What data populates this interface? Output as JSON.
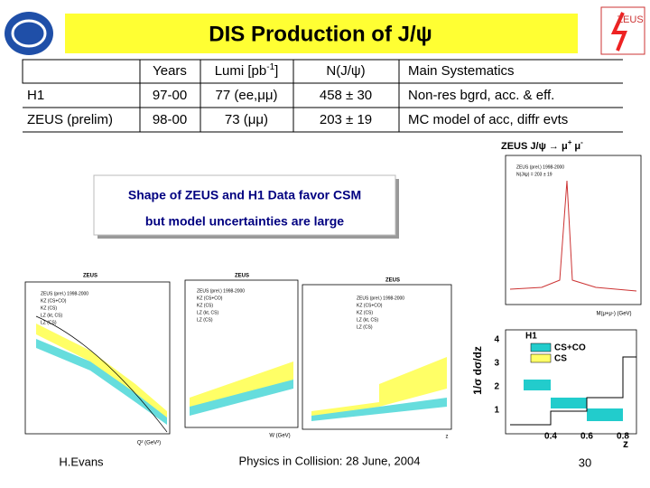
{
  "header": {
    "title": "DIS Production of J/ψ",
    "logo_right": "ZEUS"
  },
  "table": {
    "header": [
      "Years",
      {
        "text": "Lumi [pb",
        "sup": "-1",
        "end": "]"
      },
      "N(J/ψ)",
      "Main Systematics"
    ],
    "rows": [
      [
        "H1",
        "97-00",
        "77 (ee,μμ)",
        "458 ± 30",
        "Non-res bgrd, acc. & eff."
      ],
      [
        "ZEUS (prelim)",
        "98-00",
        "73 (μμ)",
        "203 ± 19",
        "MC model of acc, diffr evts"
      ]
    ]
  },
  "channel": {
    "text": "ZEUS J/ψ → μ",
    "sup1": "+",
    "mid": " μ",
    "sup2": "-"
  },
  "callout": [
    "Shape of ZEUS and H1 Data favor CSM",
    "but model uncertainties are large"
  ],
  "plots": [
    {
      "label": "ZEUS",
      "legend": [
        "ZEUS (prel.) 1998-2000",
        "KZ (CS+CO)",
        "KZ (CS)",
        "LZ (kt, CS)",
        "LZ (CS)"
      ],
      "xlabel": "Q² (GeV²)"
    },
    {
      "label": "ZEUS",
      "legend": [
        "ZEUS (prel.) 1998-2000",
        "KZ (CS+CO)",
        "KZ (CS)",
        "LZ (kt, CS)",
        "LZ (CS)"
      ],
      "xlabel": "W (GeV)"
    },
    {
      "label": "ZEUS",
      "legend": [
        "ZEUS (prel.) 1998-2000",
        "KZ (CS+CO)",
        "KZ (CS)",
        "LZ (kt, CS)",
        "LZ (CS)"
      ],
      "xlabel": "z"
    },
    {
      "legend": [
        "ZEUS (prel.) 1998-2000",
        "N(J/ψ) = 203 ± 19"
      ],
      "xlabel": "M(μ+μ-) (GeV)"
    },
    {
      "legend": [
        "H1",
        "CS+CO",
        "CS"
      ],
      "ylabel": "1/σ dσ/dz",
      "xlabel": "z",
      "yticks": [
        "4",
        "3",
        "2",
        "1"
      ],
      "xticks": [
        "0.4",
        "0.6",
        "0.8"
      ]
    }
  ],
  "footer": {
    "author": "H.Evans",
    "event": "Physics in Collision: 28 June, 2004",
    "page": "30"
  }
}
